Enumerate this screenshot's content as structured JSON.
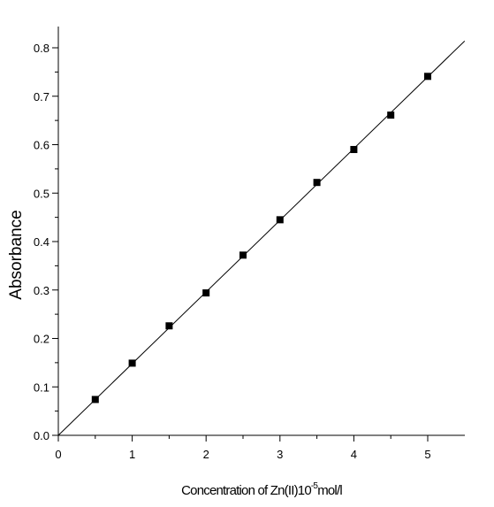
{
  "chart_data": {
    "type": "scatter",
    "xlabel": "Concentration of Zn(II)10",
    "xlabel_superscript": "-5",
    "xlabel_suffix": "mol/l",
    "ylabel": "Absorbance",
    "xlim": [
      0,
      5.5
    ],
    "ylim": [
      0,
      0.8
    ],
    "x_ticks": [
      0,
      1,
      2,
      3,
      4,
      5
    ],
    "x_tick_labels": [
      "0",
      "1",
      "2",
      "3",
      "4",
      "5"
    ],
    "y_ticks": [
      0.0,
      0.1,
      0.2,
      0.3,
      0.4,
      0.5,
      0.6,
      0.7,
      0.8
    ],
    "y_tick_labels": [
      "0.0",
      "0.1",
      "0.2",
      "0.3",
      "0.4",
      "0.5",
      "0.6",
      "0.7",
      "0.8"
    ],
    "grid": false,
    "marker": "square",
    "marker_color": "#000000",
    "fit_line": {
      "type": "linear",
      "slope": 0.148,
      "intercept": 0.0,
      "color": "#000000"
    },
    "series": [
      {
        "x": [
          0.5,
          1.0,
          1.5,
          2.0,
          2.5,
          3.0,
          3.5,
          4.0,
          4.5,
          5.0
        ],
        "y": [
          0.074,
          0.149,
          0.226,
          0.294,
          0.372,
          0.445,
          0.522,
          0.59,
          0.661,
          0.741
        ]
      }
    ]
  }
}
